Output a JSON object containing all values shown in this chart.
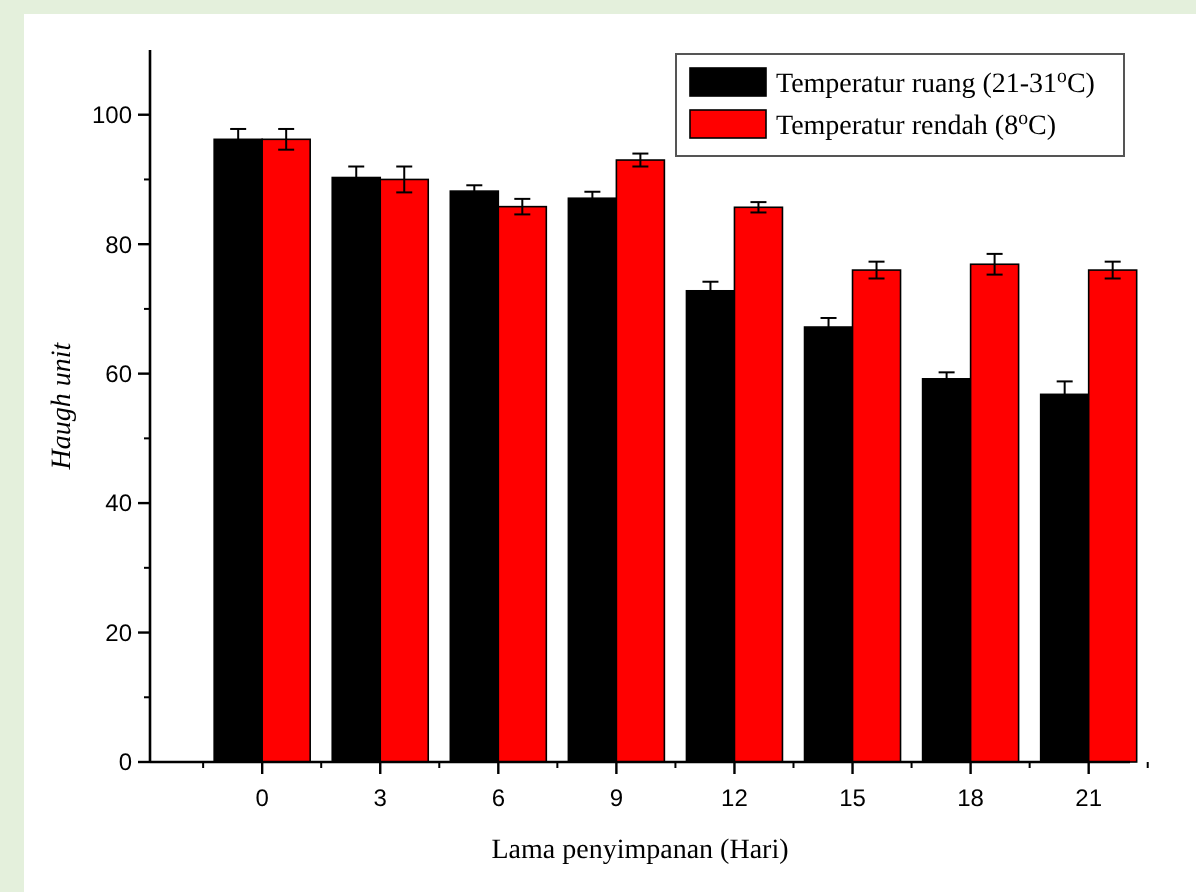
{
  "chart_data": {
    "type": "bar",
    "xlabel": "Lama penyimpanan (Hari)",
    "ylabel": "Haugh unit",
    "categories": [
      "0",
      "3",
      "6",
      "9",
      "12",
      "15",
      "18",
      "21"
    ],
    "series": [
      {
        "name": "Temperatur ruang (21-31$^{o}$C)",
        "color": "#000000",
        "values": [
          96.2,
          90.3,
          88.2,
          87.1,
          72.8,
          67.2,
          59.2,
          56.8
        ],
        "errors": [
          1.6,
          1.7,
          0.9,
          1.0,
          1.4,
          1.4,
          1.0,
          2.0
        ]
      },
      {
        "name": "Temperatur rendah (8$^{o}$C)",
        "color": "#ff0000",
        "values": [
          96.2,
          90.0,
          85.8,
          93.0,
          85.7,
          76.0,
          76.9,
          76.0
        ],
        "errors": [
          1.6,
          2.0,
          1.2,
          1.0,
          0.8,
          1.3,
          1.6,
          1.3
        ]
      }
    ],
    "ylim": [
      0,
      110
    ],
    "yticks": [
      0,
      20,
      40,
      60,
      80,
      100
    ],
    "grid": false,
    "legend": "top right"
  }
}
